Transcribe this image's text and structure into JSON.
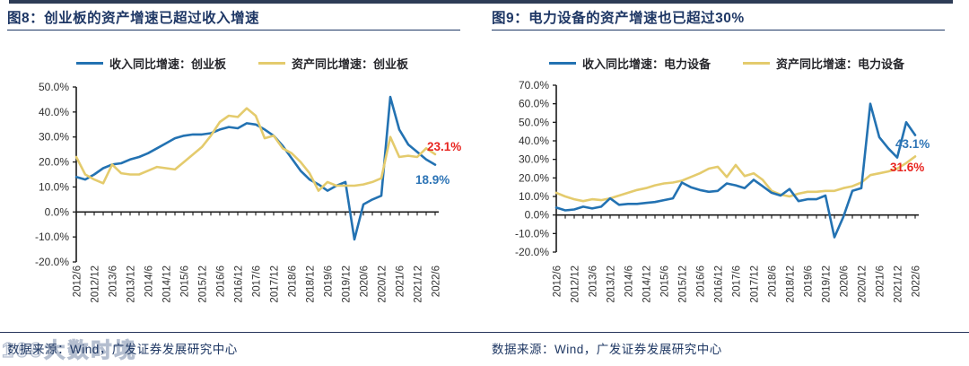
{
  "page": {
    "source_note": "数据来源：Wind，广发证券发展研究中心",
    "watermark": "169大数时境"
  },
  "chart_data": [
    {
      "id": "figure-8",
      "type": "line",
      "title": "图8：创业板的资产增速已超过收入增速",
      "legend_position": "top-center",
      "grid": false,
      "x": [
        "2012/6",
        "2012/9",
        "2012/12",
        "2013/3",
        "2013/6",
        "2013/9",
        "2013/12",
        "2014/3",
        "2014/6",
        "2014/9",
        "2014/12",
        "2015/3",
        "2015/6",
        "2015/9",
        "2015/12",
        "2016/3",
        "2016/6",
        "2016/9",
        "2016/12",
        "2017/3",
        "2017/6",
        "2017/9",
        "2017/12",
        "2018/3",
        "2018/6",
        "2018/9",
        "2018/12",
        "2019/3",
        "2019/6",
        "2019/9",
        "2019/12",
        "2020/3",
        "2020/6",
        "2020/9",
        "2020/12",
        "2021/3",
        "2021/6",
        "2021/9",
        "2021/12",
        "2022/3",
        "2022/6"
      ],
      "x_tick_labels": [
        "2012/6",
        "2012/12",
        "2013/6",
        "2013/12",
        "2014/6",
        "2014/12",
        "2015/6",
        "2015/12",
        "2016/6",
        "2016/12",
        "2017/6",
        "2017/12",
        "2018/6",
        "2018/12",
        "2019/6",
        "2019/12",
        "2020/6",
        "2020/12",
        "2021/6",
        "2021/12",
        "2022/6"
      ],
      "ylim": [
        -20,
        50
      ],
      "ytick_step": 10,
      "ytick_format": "percent-1dp",
      "legend": [
        {
          "label": "收入同比增速：创业板",
          "color": "#2372b2"
        },
        {
          "label": "资产同比增速：创业板",
          "color": "#e4cb6d"
        }
      ],
      "series": [
        {
          "name": "收入同比增速：创业板",
          "color": "#2372b2",
          "values": [
            14,
            13,
            15,
            17.5,
            19,
            19.5,
            21,
            22,
            23.5,
            25.5,
            27.5,
            29.5,
            30.5,
            31,
            31,
            31.5,
            33,
            34,
            33.5,
            35.5,
            35,
            33,
            30.5,
            26.5,
            21.5,
            16.5,
            13,
            11,
            8.5,
            10.5,
            12,
            -11,
            3,
            5,
            6.5,
            46,
            33,
            27,
            24,
            21,
            18.9
          ]
        },
        {
          "name": "资产同比增速：创业板",
          "color": "#e4cb6d",
          "values": [
            22,
            15,
            13,
            11.5,
            19,
            15.5,
            15,
            15,
            16.5,
            18,
            17.5,
            17,
            20,
            23,
            26,
            30.5,
            36,
            38.5,
            38,
            41.5,
            38.5,
            29.5,
            30.5,
            25.5,
            23.5,
            20,
            15.5,
            8.5,
            12,
            10.5,
            10.5,
            10.5,
            11,
            12,
            13.5,
            30,
            22,
            22.5,
            22,
            25.5,
            23.1
          ]
        }
      ],
      "annotations": [
        {
          "text": "23.1%",
          "color": "#e8241f",
          "series": 1
        },
        {
          "text": "18.9%",
          "color": "#2e75b6",
          "series": 0
        }
      ]
    },
    {
      "id": "figure-9",
      "type": "line",
      "title": "图9：电力设备的资产增速也已超过30%",
      "legend_position": "top-center",
      "grid": false,
      "x": [
        "2012/6",
        "2012/9",
        "2012/12",
        "2013/3",
        "2013/6",
        "2013/9",
        "2013/12",
        "2014/3",
        "2014/6",
        "2014/9",
        "2014/12",
        "2015/3",
        "2015/6",
        "2015/9",
        "2015/12",
        "2016/3",
        "2016/6",
        "2016/9",
        "2016/12",
        "2017/3",
        "2017/6",
        "2017/9",
        "2017/12",
        "2018/3",
        "2018/6",
        "2018/9",
        "2018/12",
        "2019/3",
        "2019/6",
        "2019/9",
        "2019/12",
        "2020/3",
        "2020/6",
        "2020/9",
        "2020/12",
        "2021/3",
        "2021/6",
        "2021/9",
        "2021/12",
        "2022/3",
        "2022/6"
      ],
      "x_tick_labels": [
        "2012/6",
        "2012/12",
        "2013/6",
        "2013/12",
        "2014/6",
        "2014/12",
        "2015/6",
        "2015/12",
        "2016/6",
        "2016/12",
        "2017/6",
        "2017/12",
        "2018/6",
        "2018/12",
        "2019/6",
        "2019/12",
        "2020/6",
        "2020/12",
        "2021/6",
        "2021/12",
        "2022/6"
      ],
      "ylim": [
        -20,
        70
      ],
      "ytick_step": 10,
      "ytick_format": "percent-1dp",
      "legend": [
        {
          "label": "收入同比增速：电力设备",
          "color": "#2372b2"
        },
        {
          "label": "资产同比增速：电力设备",
          "color": "#e4cb6d"
        }
      ],
      "series": [
        {
          "name": "收入同比增速：电力设备",
          "color": "#2372b2",
          "values": [
            4,
            2.5,
            3,
            4.5,
            3.5,
            4.5,
            9,
            5.5,
            6,
            6,
            6.5,
            7,
            8,
            9,
            17.5,
            15,
            13.5,
            12.5,
            13,
            17,
            16,
            14.5,
            19,
            15.5,
            12,
            10.5,
            14,
            7.5,
            8.5,
            8.5,
            10.5,
            -12,
            -1,
            13,
            14.5,
            60,
            42,
            36,
            31,
            50,
            43.1
          ]
        },
        {
          "name": "资产同比增速：电力设备",
          "color": "#e4cb6d",
          "values": [
            12,
            10,
            8.5,
            7.5,
            8.5,
            8,
            9,
            10.5,
            12,
            13.5,
            14.5,
            16,
            17,
            17.5,
            18.5,
            20.5,
            22.5,
            25,
            26,
            20.5,
            27,
            21,
            22.5,
            19,
            13,
            11,
            10,
            11.5,
            12.5,
            12.5,
            13,
            13,
            14.5,
            15.5,
            17.5,
            21.5,
            22.5,
            23.5,
            25,
            28,
            31.6
          ]
        }
      ],
      "annotations": [
        {
          "text": "43.1%",
          "color": "#2e75b6",
          "series": 0
        },
        {
          "text": "31.6%",
          "color": "#e8241f",
          "series": 1
        }
      ]
    }
  ]
}
